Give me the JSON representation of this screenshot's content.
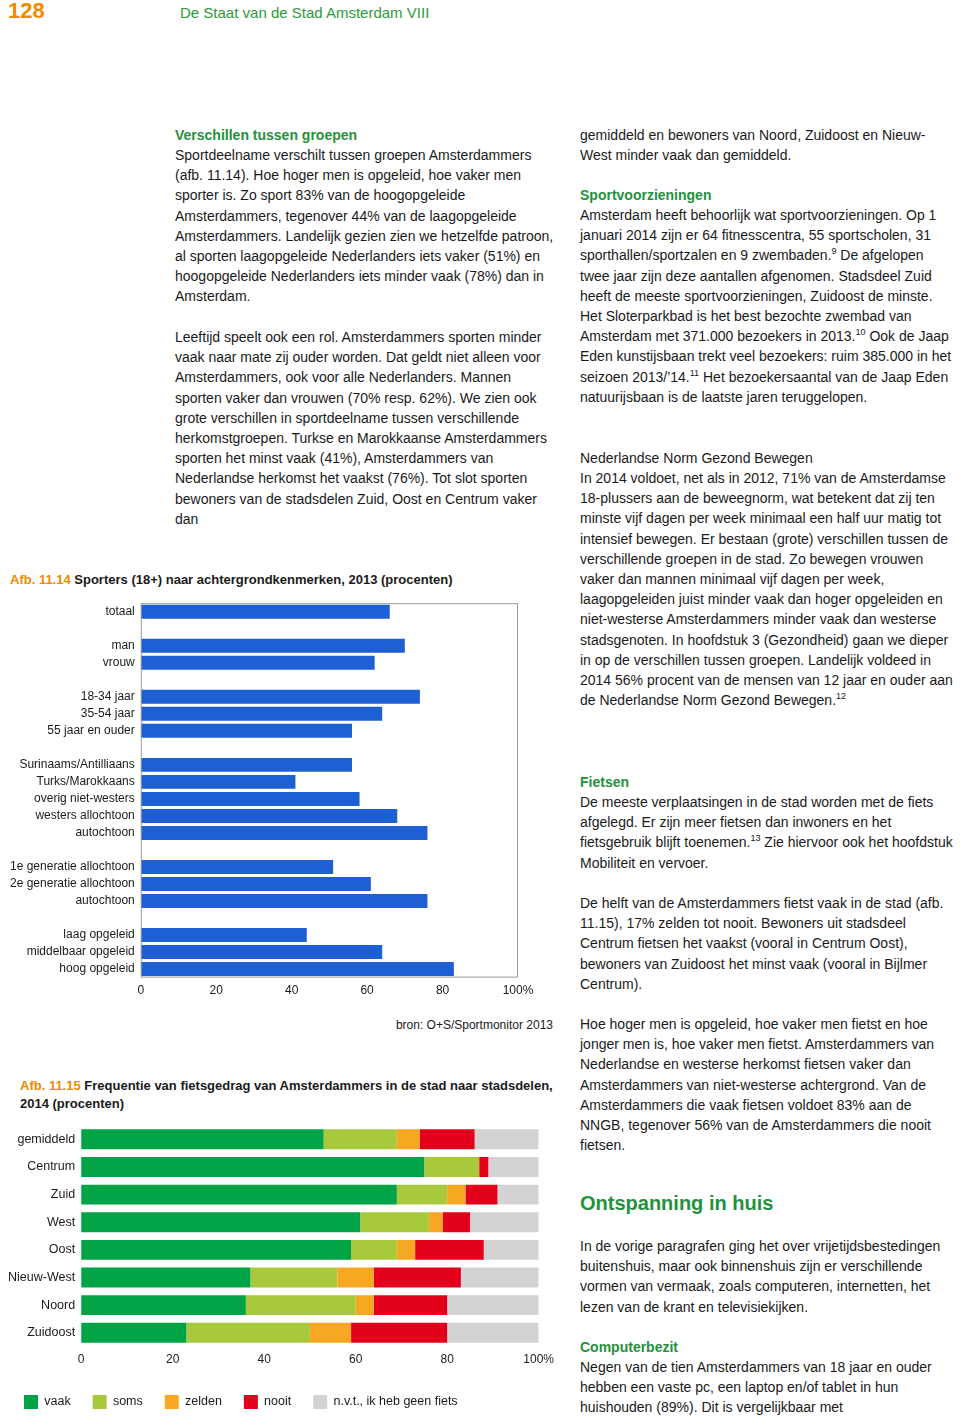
{
  "header": {
    "page_number": "128",
    "running_title": "De Staat van de Stad Amsterdam VIII"
  },
  "text_columns": [
    [
      {
        "heading": "Verschillen tussen groepen"
      },
      {
        "paragraph": [
          "Sportdeelname verschilt tussen groepen Amsterdammers (afb. 11.14). Hoe hoger men is opgeleid, hoe vaker men sporter is. Zo sport 83% van de hoogopgeleide Amsterdammers, tegenover 44% van de laagopgeleide Amsterdammers. Landelijk gezien zien we hetzelfde patroon, al sporten laagopgeleide Nederlanders iets vaker (51%) en hoogopgeleide Nederlanders iets minder vaak (78%) dan in Amsterdam."
        ]
      },
      {
        "paragraph": [
          "Leeftijd speelt ook een rol. Amsterdammers sporten minder vaak naar mate zij ouder worden. Dat geldt niet alleen voor Amsterdammers, ook voor alle Nederlanders. Mannen sporten vaker dan vrouwen (70% resp. 62%). We zien ook grote verschillen in sportdeelname tussen verschillende herkomstgroepen. Turkse en Marokkaanse Amsterdammers sporten het minst vaak (41%), Amsterdammers van Nederlandse herkomst het vaakst (76%). Tot slot sporten bewoners van de stadsdelen Zuid, Oost en Centrum vaker dan"
        ]
      }
    ],
    [
      {
        "paragraph": [
          "gemiddeld en bewoners van Noord, Zuidoost en Nieuw-West minder vaak dan gemiddeld."
        ]
      },
      {
        "heading": "Sportvoorzieningen"
      },
      {
        "paragraph": [
          "Amsterdam heeft behoorlijk wat sportvoorzieningen. Op 1 januari 2014 zijn er 64 fitnesscentra, 55 sportscholen, 31 sporthallen/sportzalen en 9 zwembaden.",
          {
            "sup": "9"
          },
          " De afgelopen twee jaar zijn deze aantallen afgenomen. Stadsdeel Zuid heeft de meeste sportvoorzieningen, Zuidoost de minste. Het Sloterparkbad is het best bezochte zwembad van Amsterdam met 371.000 bezoekers in 2013.",
          {
            "sup": "10"
          },
          " Ook de Jaap Eden kunstijsbaan trekt veel bezoekers: ruim 385.000 in het seizoen 2013/’14.",
          {
            "sup": "11"
          },
          " Het bezoekersaantal van de Jaap Eden natuurijsbaan is de laatste jaren teruggelopen."
        ]
      },
      {
        "subheading": "Nederlandse Norm Gezond Bewegen"
      },
      {
        "paragraph": [
          "In 2014 voldoet, net als in 2012, 71% van de Amsterdamse 18-plussers aan de beweegnorm, wat betekent dat zij ten minste vijf dagen per week minimaal een half uur matig tot intensief bewegen. Er bestaan (grote) verschillen tussen de verschillende groepen in de stad. Zo bewegen vrouwen vaker dan mannen minimaal vijf dagen per week, laagopgeleiden juist minder vaak dan hoger opgeleiden en niet-westerse Amsterdammers minder vaak dan westerse stadsgenoten. In hoofdstuk 3 (Gezondheid) gaan we dieper in op de verschillen tussen groepen. Landelijk voldeed in 2014 56% procent van de mensen van 12 jaar en ouder aan de Nederlandse Norm Gezond Bewegen.",
          {
            "sup": "12"
          }
        ]
      },
      {
        "heading": "Fietsen"
      },
      {
        "paragraph": [
          "De meeste verplaatsingen in de stad worden met de fiets afgelegd. Er zijn meer fietsen dan inwoners en het fietsgebruik blijft toenemen.",
          {
            "sup": "13"
          },
          " Zie hiervoor ook het hoofdstuk Mobiliteit en vervoer."
        ]
      },
      {
        "paragraph": [
          "De helft van de Amsterdammers fietst vaak in de stad (afb. 11.15), 17% zelden tot nooit. Bewoners uit stadsdeel Centrum fietsen het vaakst (vooral in Centrum Oost), bewoners van Zuidoost het minst vaak (vooral in Bijlmer Centrum)."
        ]
      },
      {
        "paragraph": [
          "Hoe hoger men is opgeleid, hoe vaker men fietst en hoe jonger men is, hoe vaker men fietst. Amsterdammers van Nederlandse en westerse herkomst fietsen vaker dan Amsterdammers van niet-westerse achtergrond. Van de Amsterdammers die vaak fietsen voldoet 83% aan de NNGB, tegenover 56% van de Amsterdammers die nooit fietsen."
        ]
      },
      {
        "heading_large": "Ontspanning in huis"
      },
      {
        "paragraph": [
          "In de vorige paragrafen ging het over vrijetijdsbestedingen buitenshuis, maar ook binnenshuis zijn er verschillende vormen van vermaak, zoals computeren, internetten, het lezen van de krant en televisiekijken."
        ]
      },
      {
        "heading": "Computerbezit"
      },
      {
        "paragraph": [
          "Negen van de tien Amsterdammers van 18 jaar en ouder hebben een vaste pc, een laptop en/of tablet in hun huishouden (89%). Dit is vergelijkbaar met"
        ]
      }
    ]
  ],
  "chart_data": [
    {
      "type": "bar",
      "orientation": "horizontal",
      "title": "Afb. 11.14 Sporters (18+) naar achtergrondkenmerken, 2013 (procenten)",
      "categories": [
        "totaal",
        null,
        "man",
        "vrouw",
        null,
        "18-34 jaar",
        "35-54 jaar",
        "55 jaar en ouder",
        null,
        "Surinaams/Antilliaans",
        "Turks/Marokkaans",
        "overig niet-westers",
        "westers allochtoon",
        "autochtoon",
        null,
        "1e generatie allochtoon",
        "2e generatie allochtoon",
        "autochtoon",
        null,
        "laag opgeleid",
        "middelbaar opgeleid",
        "hoog opgeleid"
      ],
      "values": [
        66,
        null,
        70,
        62,
        null,
        74,
        64,
        56,
        null,
        56,
        41,
        58,
        68,
        76,
        null,
        51,
        61,
        76,
        null,
        44,
        64,
        83
      ],
      "color": "#1f5fd4",
      "xlim": [
        0,
        100
      ],
      "xticks": [
        0,
        20,
        40,
        60,
        80,
        {
          "value": 100,
          "label": "100%"
        }
      ],
      "grid": false,
      "annotations": [
        "bron: O+S/Sportmonitor 2013"
      ]
    },
    {
      "type": "bar",
      "orientation": "horizontal",
      "stacked": true,
      "title": "Afb. 11.15 Frequentie van fietsgedrag van Amsterdammers in de stad naar stadsdelen, 2014 (procenten)",
      "categories": [
        "gemiddeld",
        "Centrum",
        "Zuid",
        "West",
        "Oost",
        "Nieuw-West",
        "Noord",
        "Zuidoost"
      ],
      "series": [
        {
          "name": "vaak",
          "color": "#00a447",
          "values": [
            53,
            75,
            69,
            61,
            59,
            37,
            36,
            23
          ]
        },
        {
          "name": "soms",
          "color": "#a9c93c",
          "values": [
            16,
            12,
            11,
            15,
            10,
            19,
            24,
            27
          ]
        },
        {
          "name": "zelden",
          "color": "#f7a823",
          "values": [
            5,
            0,
            4,
            3,
            4,
            8,
            4,
            9
          ]
        },
        {
          "name": "nooit",
          "color": "#e2001a",
          "values": [
            12,
            2,
            7,
            6,
            15,
            19,
            16,
            21
          ]
        },
        {
          "name": "n.v.t., ik heb geen fiets",
          "color": "#d3d3d3",
          "values": [
            14,
            11,
            9,
            15,
            12,
            17,
            20,
            20
          ]
        }
      ],
      "xlim": [
        0,
        100
      ],
      "xticks": [
        0,
        20,
        40,
        60,
        80,
        {
          "value": 100,
          "label": "100%"
        }
      ],
      "grid": false,
      "legend": "bottom"
    }
  ]
}
